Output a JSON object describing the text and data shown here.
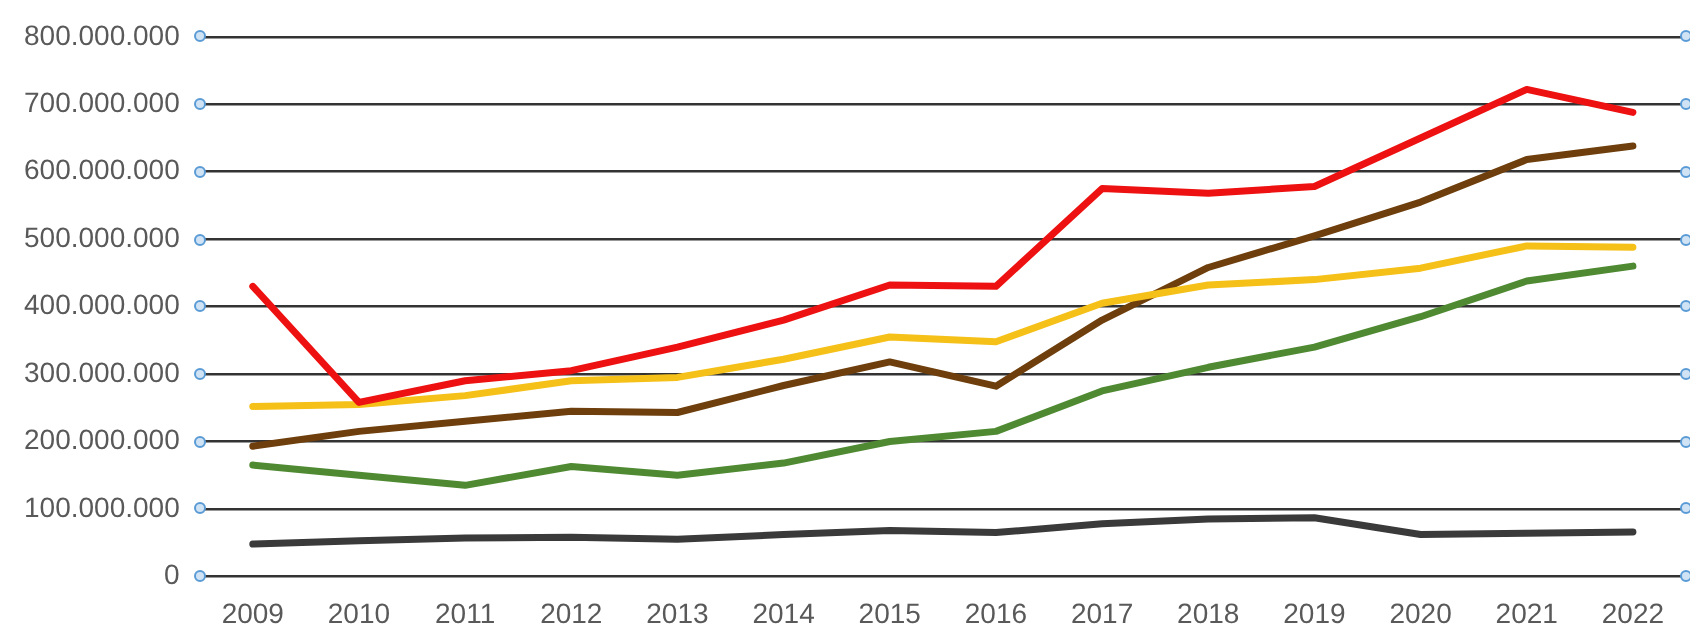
{
  "chart_data": {
    "type": "line",
    "categories": [
      "2009",
      "2010",
      "2011",
      "2012",
      "2013",
      "2014",
      "2015",
      "2016",
      "2017",
      "2018",
      "2019",
      "2020",
      "2021",
      "2022"
    ],
    "series": [
      {
        "color": "#ee1111",
        "values": [
          430000000,
          258000000,
          290000000,
          305000000,
          340000000,
          380000000,
          432000000,
          430000000,
          575000000,
          568000000,
          578000000,
          650000000,
          722000000,
          688000000
        ]
      },
      {
        "color": "#f5c018",
        "values": [
          252000000,
          255000000,
          268000000,
          290000000,
          295000000,
          322000000,
          355000000,
          348000000,
          405000000,
          432000000,
          440000000,
          457000000,
          490000000,
          488000000
        ]
      },
      {
        "color": "#6e3f0c",
        "values": [
          193000000,
          215000000,
          230000000,
          245000000,
          243000000,
          283000000,
          318000000,
          282000000,
          380000000,
          458000000,
          505000000,
          555000000,
          618000000,
          638000000
        ]
      },
      {
        "color": "#4f8a32",
        "values": [
          165000000,
          150000000,
          135000000,
          163000000,
          150000000,
          168000000,
          200000000,
          215000000,
          275000000,
          310000000,
          340000000,
          385000000,
          438000000,
          460000000
        ]
      },
      {
        "color": "#3a3a3a",
        "values": [
          48000000,
          53000000,
          57000000,
          58000000,
          55000000,
          62000000,
          68000000,
          65000000,
          78000000,
          85000000,
          87000000,
          62000000,
          64000000,
          66000000
        ]
      }
    ],
    "ylim": [
      0,
      800000000
    ],
    "yticks": [
      {
        "value": 0,
        "label": "0"
      },
      {
        "value": 100000000,
        "label": "100.000.000"
      },
      {
        "value": 200000000,
        "label": "200.000.000"
      },
      {
        "value": 300000000,
        "label": "300.000.000"
      },
      {
        "value": 400000000,
        "label": "400.000.000"
      },
      {
        "value": 500000000,
        "label": "500.000.000"
      },
      {
        "value": 600000000,
        "label": "600.000.000"
      },
      {
        "value": 700000000,
        "label": "700.000.000"
      },
      {
        "value": 800000000,
        "label": "800.000.000"
      }
    ],
    "grid": "y",
    "legend": false,
    "marker": "none",
    "line_style": "solid"
  }
}
